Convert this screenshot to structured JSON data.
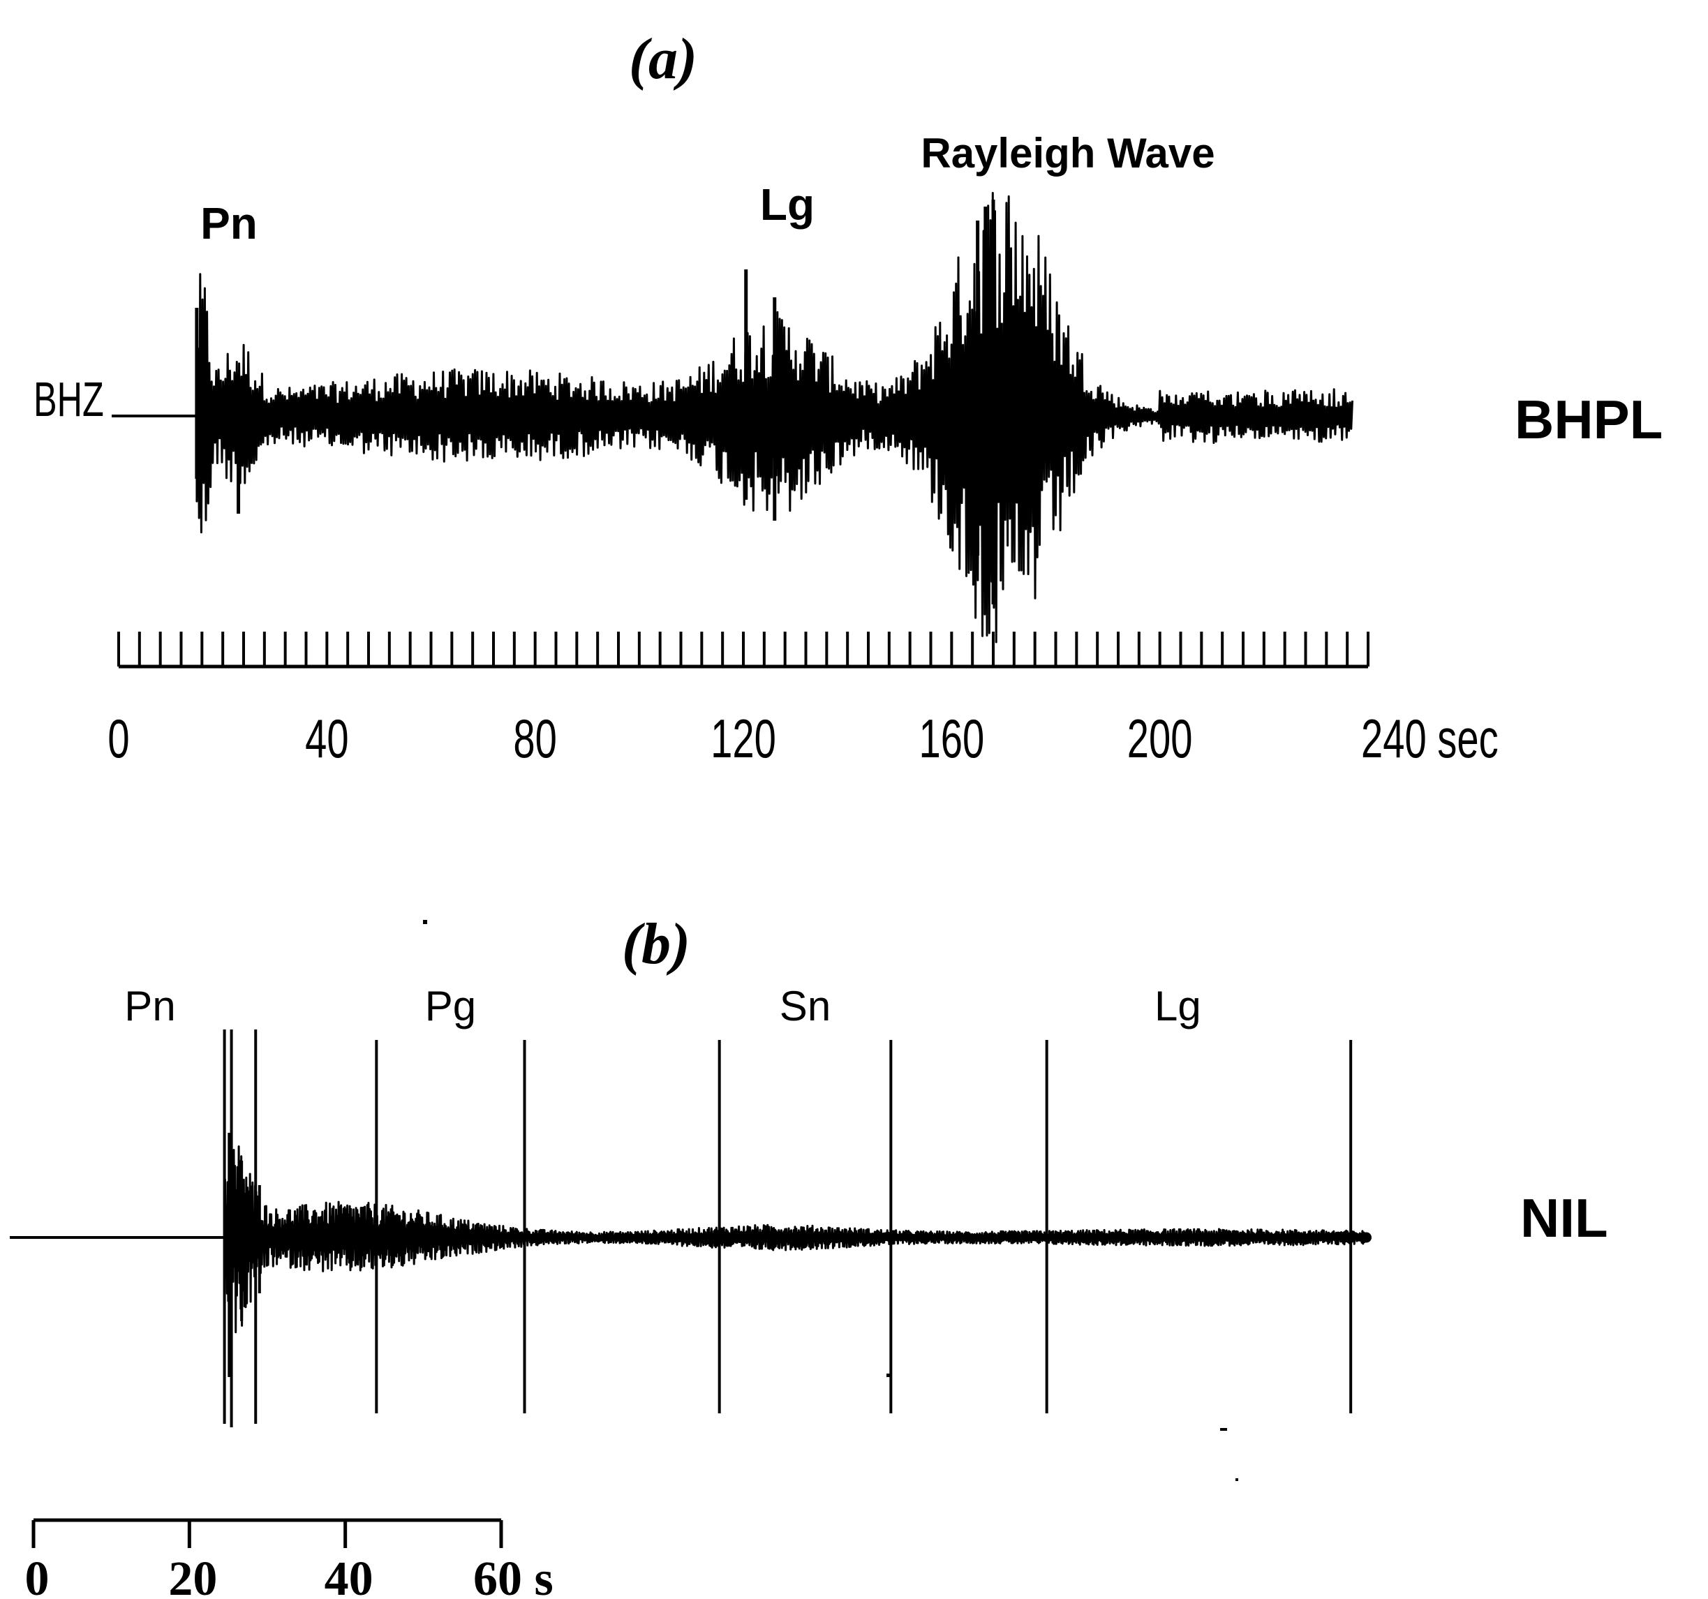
{
  "panel_a": {
    "label": "(a)",
    "channel": "BHZ",
    "station": "BHPL",
    "phases": [
      {
        "name": "Pn",
        "time": 15
      },
      {
        "name": "Lg",
        "time": 120
      },
      {
        "name": "Rayleigh Wave",
        "time": 166
      }
    ],
    "axis": {
      "min": 0,
      "max": 240,
      "minor_step": 4,
      "ticks": [
        {
          "value": 0,
          "label": "0"
        },
        {
          "value": 40,
          "label": "40"
        },
        {
          "value": 80,
          "label": "80"
        },
        {
          "value": 120,
          "label": "120"
        },
        {
          "value": 160,
          "label": "160"
        },
        {
          "value": 200,
          "label": "200"
        },
        {
          "value": 240,
          "label": "240 sec"
        }
      ]
    }
  },
  "panel_b": {
    "label": "(b)",
    "station": "NIL",
    "phases": [
      {
        "name": "Pn",
        "start": 24.5,
        "end": 28.5
      },
      {
        "name": "Pg",
        "start": 44,
        "end": 63
      },
      {
        "name": "Sn",
        "start": 88,
        "end": 110
      },
      {
        "name": "Lg",
        "start": 130,
        "end": 169
      }
    ],
    "scale_bar": {
      "min": 0,
      "max": 60,
      "ticks": [
        {
          "value": 0,
          "label": "0"
        },
        {
          "value": 20,
          "label": "20"
        },
        {
          "value": 40,
          "label": "40"
        },
        {
          "value": 60,
          "label": "60 s"
        }
      ]
    }
  }
}
